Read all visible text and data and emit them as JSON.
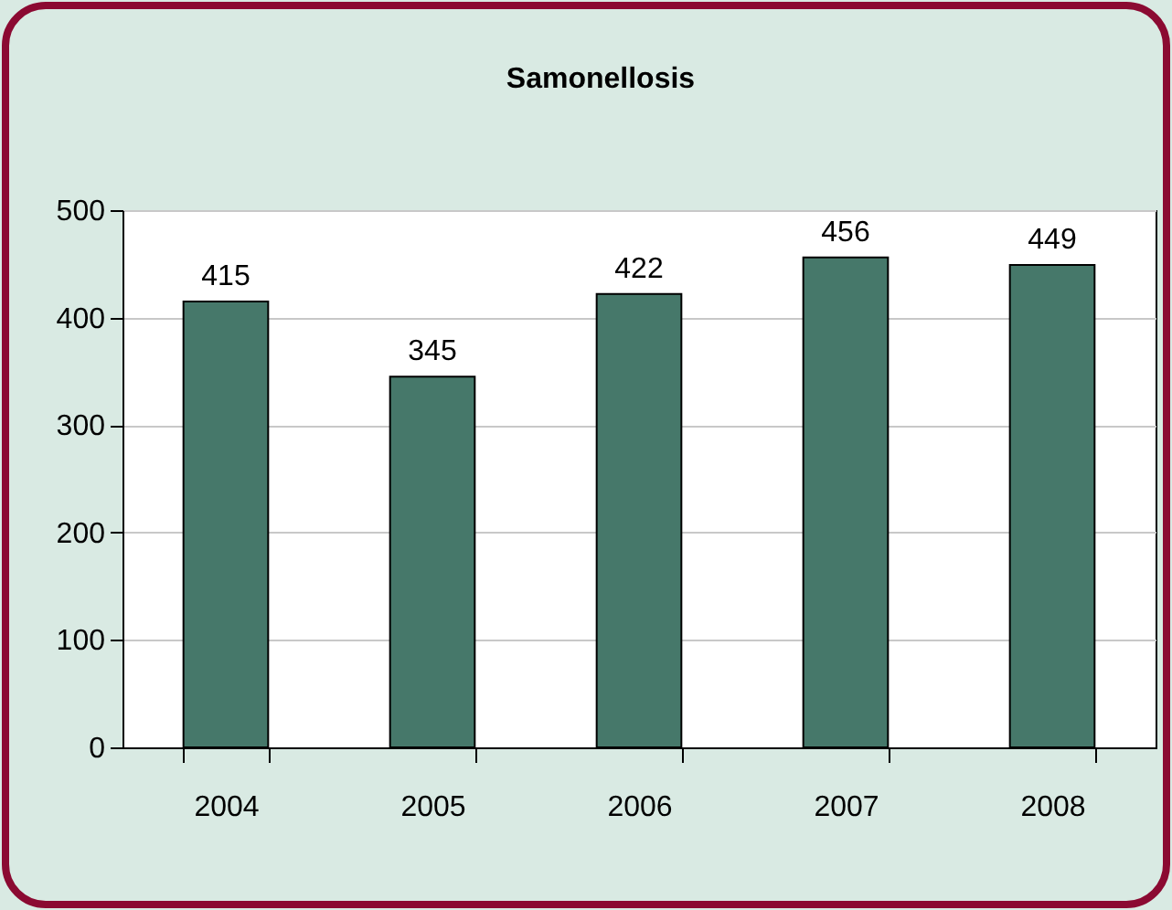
{
  "chart_data": {
    "type": "bar",
    "title": "Samonellosis",
    "categories": [
      "2004",
      "2005",
      "2006",
      "2007",
      "2008"
    ],
    "values": [
      415,
      345,
      422,
      456,
      449
    ],
    "color": "#46786a",
    "ylim": [
      0,
      500
    ],
    "yticks": [
      0,
      100,
      200,
      300,
      400,
      500
    ],
    "grid": "y",
    "data_labels": true
  }
}
